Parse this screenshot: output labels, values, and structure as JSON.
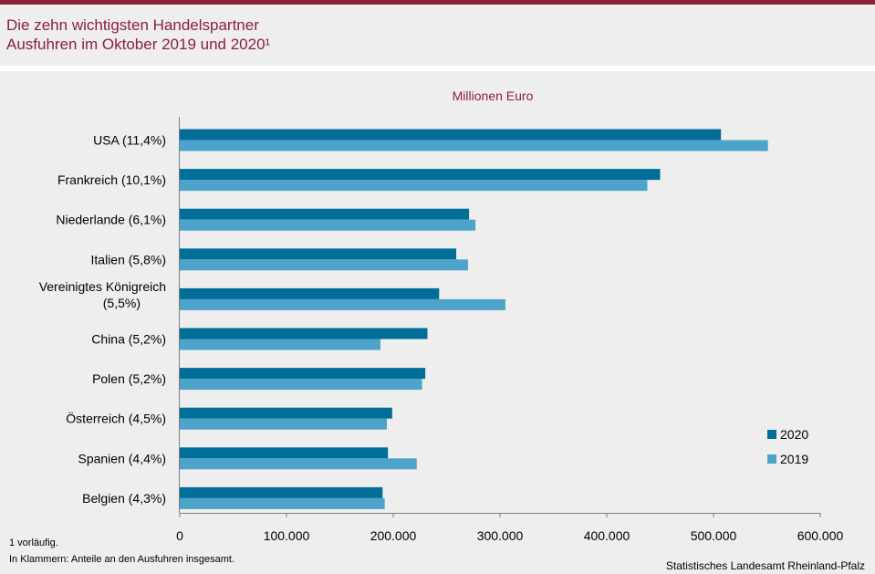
{
  "header": {
    "title_line1": "Die zehn wichtigsten Handelspartner",
    "title_line2": "Ausfuhren im Oktober 2019 und 2020¹"
  },
  "colors": {
    "brand": "#8e1f3b",
    "series_2020": "#006e98",
    "series_2019": "#4da3c9",
    "background": "#eeeeee"
  },
  "chart_data": {
    "type": "bar",
    "orientation": "horizontal",
    "title": "Die zehn wichtigsten Handelspartner – Ausfuhren im Oktober 2019 und 2020¹",
    "unit_label": "Millionen Euro",
    "categories": [
      "USA (11,4%)",
      "Frankreich (10,1%)",
      "Niederlande (6,1%)",
      "Italien (5,8%)",
      [
        "Vereinigtes Königreich",
        "(5,5%)"
      ],
      "China (5,2%)",
      "Polen (5,2%)",
      "Österreich (4,5%)",
      "Spanien (4,4%)",
      "Belgien (4,3%)"
    ],
    "series": [
      {
        "name": "2020",
        "values": [
          507000,
          450000,
          271000,
          259000,
          243000,
          232000,
          230000,
          199000,
          195000,
          190000
        ]
      },
      {
        "name": "2019",
        "values": [
          551000,
          438000,
          277000,
          270000,
          305000,
          188000,
          227000,
          194000,
          222000,
          192000
        ]
      }
    ],
    "xlim": [
      0,
      600000
    ],
    "xticks": [
      "0",
      "100.000",
      "200.000",
      "300.000",
      "400.000",
      "500.000",
      "600.000"
    ],
    "legend_position": "right"
  },
  "footnotes": {
    "note1": "1 vorläufig.",
    "note2": "In Klammern: Anteile an den Ausfuhren insgesamt."
  },
  "source": "Statistisches Landesamt Rheinland-Pfalz"
}
